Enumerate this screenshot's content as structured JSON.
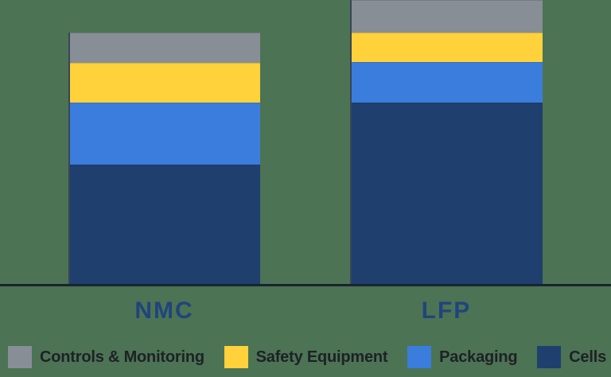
{
  "chart_data": {
    "type": "bar",
    "stacked": true,
    "categories": [
      "NMC",
      "LFP"
    ],
    "series": [
      {
        "name": "Cells",
        "color": "#1F3F6E",
        "values": [
          47.6,
          72.2
        ]
      },
      {
        "name": "Packaging",
        "color": "#3B7DDD",
        "values": [
          24.6,
          16.1
        ]
      },
      {
        "name": "Safety Equipment",
        "color": "#FFD23B",
        "values": [
          15.9,
          11.9
        ]
      },
      {
        "name": "Controls & Monitoring",
        "color": "#878E96",
        "values": [
          11.9,
          12.8
        ]
      }
    ],
    "stack_order": "bottom-to-top",
    "value_unit": "relative share, estimated from bar heights (NMC total = 100; no numeric axis shown)",
    "xlabel": "",
    "ylabel": "",
    "ylim": [
      0,
      113
    ],
    "grid": false,
    "legend_position": "bottom"
  },
  "legend": {
    "items": [
      {
        "label": "Controls & Monitoring",
        "color": "#878E96"
      },
      {
        "label": "Safety Equipment",
        "color": "#FFD23B"
      },
      {
        "label": "Packaging",
        "color": "#3B7DDD"
      },
      {
        "label": "Cells",
        "color": "#1F3F6E"
      }
    ]
  },
  "colors": {
    "background": "#4C7354",
    "axis_line": "#1A2431",
    "category_label": "#20457C",
    "legend_text": "#1E2126",
    "bar_left_edge": "#3A4557"
  }
}
